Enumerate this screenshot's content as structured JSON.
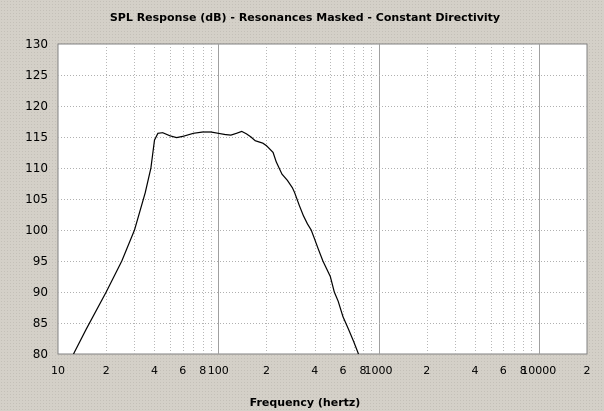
{
  "chart_data": {
    "type": "line",
    "title": "SPL Response (dB) - Resonances Masked - Constant Directivity",
    "xlabel": "Frequency (hertz)",
    "ylabel": "",
    "x_scale": "log",
    "xlim": [
      10,
      20000
    ],
    "ylim": [
      80,
      130
    ],
    "y_ticks": [
      80,
      85,
      90,
      95,
      100,
      105,
      110,
      115,
      120,
      125,
      130
    ],
    "x_ticks": [
      {
        "value": 10,
        "label": "10"
      },
      {
        "value": 20,
        "label": "2"
      },
      {
        "value": 40,
        "label": "4"
      },
      {
        "value": 60,
        "label": "6"
      },
      {
        "value": 80,
        "label": "8"
      },
      {
        "value": 100,
        "label": "100"
      },
      {
        "value": 200,
        "label": "2"
      },
      {
        "value": 400,
        "label": "4"
      },
      {
        "value": 600,
        "label": "6"
      },
      {
        "value": 800,
        "label": "8"
      },
      {
        "value": 1000,
        "label": "1000"
      },
      {
        "value": 2000,
        "label": "2"
      },
      {
        "value": 4000,
        "label": "4"
      },
      {
        "value": 6000,
        "label": "6"
      },
      {
        "value": 8000,
        "label": "8"
      },
      {
        "value": 10000,
        "label": "10000"
      },
      {
        "value": 20000,
        "label": "2"
      }
    ],
    "grid": true,
    "background_color": "#ffffff",
    "series": [
      {
        "line_color": "#000000",
        "points": [
          [
            12.5,
            80
          ],
          [
            15,
            84
          ],
          [
            20,
            90
          ],
          [
            25,
            95
          ],
          [
            30,
            100
          ],
          [
            35,
            106
          ],
          [
            38,
            110
          ],
          [
            40,
            114.5
          ],
          [
            42,
            115.6
          ],
          [
            45,
            115.7
          ],
          [
            50,
            115.2
          ],
          [
            55,
            114.9
          ],
          [
            60,
            115.1
          ],
          [
            70,
            115.6
          ],
          [
            80,
            115.8
          ],
          [
            90,
            115.8
          ],
          [
            100,
            115.6
          ],
          [
            110,
            115.4
          ],
          [
            120,
            115.3
          ],
          [
            130,
            115.6
          ],
          [
            140,
            115.9
          ],
          [
            150,
            115.5
          ],
          [
            160,
            115
          ],
          [
            170,
            114.4
          ],
          [
            180,
            114.2
          ],
          [
            190,
            114
          ],
          [
            200,
            113.6
          ],
          [
            220,
            112.5
          ],
          [
            230,
            111
          ],
          [
            250,
            109
          ],
          [
            270,
            108
          ],
          [
            290,
            106.8
          ],
          [
            300,
            106
          ],
          [
            320,
            104
          ],
          [
            340,
            102.3
          ],
          [
            360,
            101
          ],
          [
            380,
            100
          ],
          [
            400,
            98.5
          ],
          [
            420,
            97
          ],
          [
            450,
            95
          ],
          [
            500,
            92.5
          ],
          [
            530,
            90
          ],
          [
            560,
            88.5
          ],
          [
            600,
            86
          ],
          [
            650,
            84
          ],
          [
            700,
            82
          ],
          [
            750,
            80
          ]
        ]
      }
    ]
  }
}
